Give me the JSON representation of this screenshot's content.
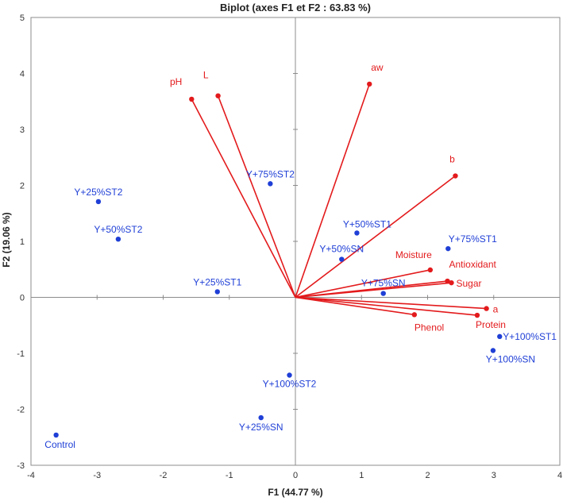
{
  "chart_data": {
    "type": "scatter",
    "title": "Biplot (axes F1 et F2 : 63.83 %)",
    "xlabel": "F1 (44.77 %)",
    "ylabel": "F2 (19.06 %)",
    "xlim": [
      -4,
      4
    ],
    "ylim": [
      -3,
      5
    ],
    "x_ticks": [
      "-4",
      "-3",
      "-2",
      "-1",
      "0",
      "1",
      "2",
      "3",
      "4"
    ],
    "y_ticks": [
      "-3",
      "-2",
      "-1",
      "0",
      "1",
      "2",
      "3",
      "4",
      "5"
    ],
    "grid": false,
    "colors": {
      "observations": "#1f3fd6",
      "variables": "#e31a1c",
      "axis": "#8c8c8c"
    },
    "observations": [
      {
        "name": "Y+25%ST2",
        "x": -2.98,
        "y": 1.71
      },
      {
        "name": "Y+50%ST2",
        "x": -2.68,
        "y": 1.04
      },
      {
        "name": "Y+75%ST2",
        "x": -0.38,
        "y": 2.03
      },
      {
        "name": "Y+25%ST1",
        "x": -1.18,
        "y": 0.1
      },
      {
        "name": "Y+50%ST1",
        "x": 0.93,
        "y": 1.15
      },
      {
        "name": "Y+50%SN",
        "x": 0.7,
        "y": 0.68
      },
      {
        "name": "Y+75%SN",
        "x": 1.33,
        "y": 0.07
      },
      {
        "name": "Y+75%ST1",
        "x": 2.31,
        "y": 0.87
      },
      {
        "name": "Y+100%ST1",
        "x": 3.09,
        "y": -0.7
      },
      {
        "name": "Y+100%SN",
        "x": 2.99,
        "y": -0.95
      },
      {
        "name": "Y+100%ST2",
        "x": -0.09,
        "y": -1.39
      },
      {
        "name": "Y+25%SN",
        "x": -0.52,
        "y": -2.15
      },
      {
        "name": "Control",
        "x": -3.62,
        "y": -2.46
      }
    ],
    "variables": [
      {
        "name": "pH",
        "x": -1.57,
        "y": 3.54
      },
      {
        "name": "L",
        "x": -1.17,
        "y": 3.6
      },
      {
        "name": "aw",
        "x": 1.12,
        "y": 3.81
      },
      {
        "name": "b",
        "x": 2.42,
        "y": 2.17
      },
      {
        "name": "Moisture",
        "x": 2.04,
        "y": 0.49
      },
      {
        "name": "Antioxidant",
        "x": 2.3,
        "y": 0.29
      },
      {
        "name": "Sugar",
        "x": 2.36,
        "y": 0.26
      },
      {
        "name": "a",
        "x": 2.89,
        "y": -0.2
      },
      {
        "name": "Protein",
        "x": 2.75,
        "y": -0.32
      },
      {
        "name": "Phenol",
        "x": 1.8,
        "y": -0.31
      }
    ]
  }
}
